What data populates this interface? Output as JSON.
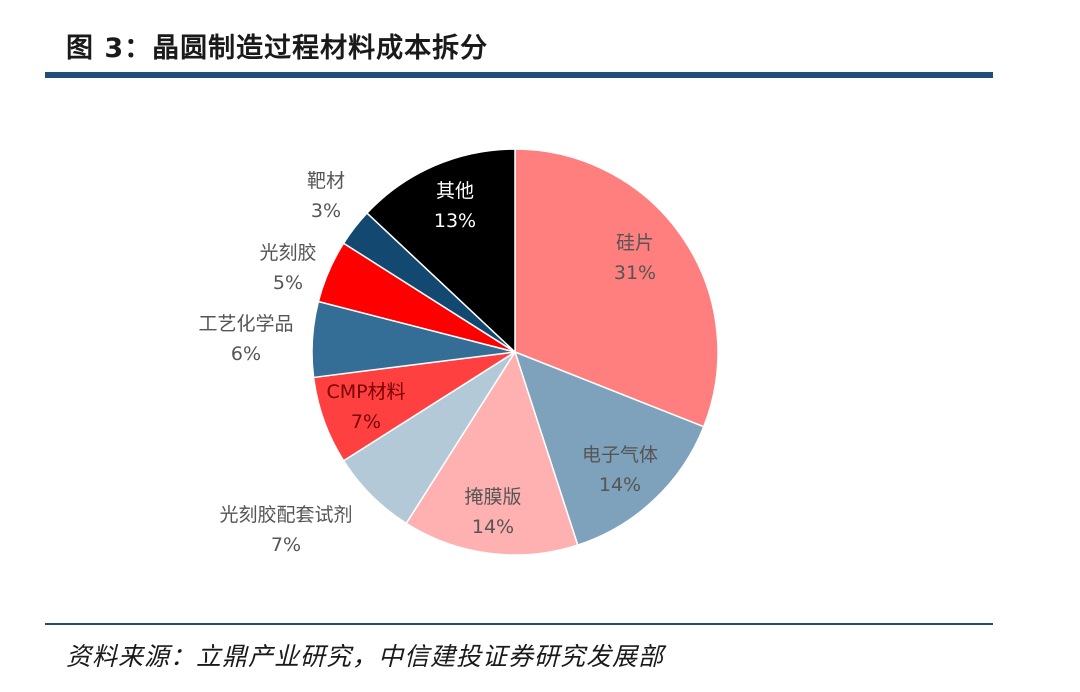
{
  "header": {
    "title": "图 3：晶圆制造过程材料成本拆分"
  },
  "footer": {
    "source": "资料来源：立鼎产业研究，中信建投证券研究发展部"
  },
  "chart_data": {
    "type": "pie",
    "title": "图 3：晶圆制造过程材料成本拆分",
    "start": "12 o'clock, clockwise",
    "slices": [
      {
        "name": "硅片",
        "value": 31,
        "label": "31%",
        "color": "#ff7f7f"
      },
      {
        "name": "电子气体",
        "value": 14,
        "label": "14%",
        "color": "#7fa2bc"
      },
      {
        "name": "掩膜版",
        "value": 14,
        "label": "14%",
        "color": "#ffb1b1"
      },
      {
        "name": "光刻胶配套试剂",
        "value": 7,
        "label": "7%",
        "color": "#b4c9d8"
      },
      {
        "name": "CMP材料",
        "value": 7,
        "label": "7%",
        "color": "#ff4040"
      },
      {
        "name": "工艺化学品",
        "value": 6,
        "label": "6%",
        "color": "#346e96"
      },
      {
        "name": "光刻胶",
        "value": 5,
        "label": "5%",
        "color": "#ff0000"
      },
      {
        "name": "靶材",
        "value": 3,
        "label": "3%",
        "color": "#134870"
      },
      {
        "name": "其他",
        "value": 13,
        "label": "13%",
        "color": "#000000"
      }
    ],
    "label_colors": {
      "dark": "#555555",
      "light": "#ffffff",
      "on_red": "#7a0000"
    }
  }
}
